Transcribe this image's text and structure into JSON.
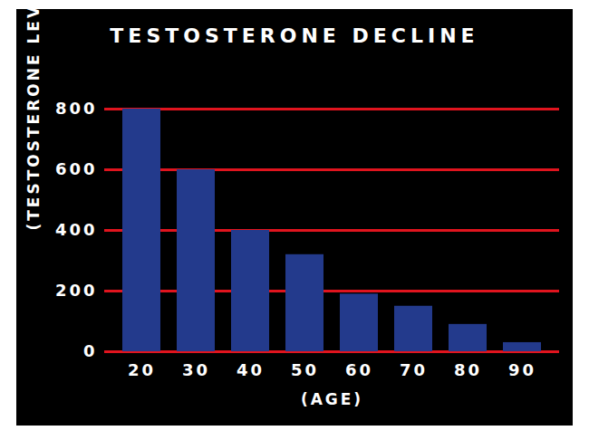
{
  "chart_data": {
    "type": "bar",
    "title": "TESTOSTERONE DECLINE",
    "x_label": "(AGE)",
    "y_label": "(TESTOSTERONE LEVEL)",
    "categories": [
      "20",
      "30",
      "40",
      "50",
      "60",
      "70",
      "80",
      "90"
    ],
    "values": [
      800,
      600,
      400,
      320,
      190,
      150,
      90,
      30
    ],
    "color": "#233a8c",
    "ylim": [
      0,
      800
    ],
    "yticks": [
      0,
      200,
      400,
      600,
      800
    ],
    "grid": true
  }
}
